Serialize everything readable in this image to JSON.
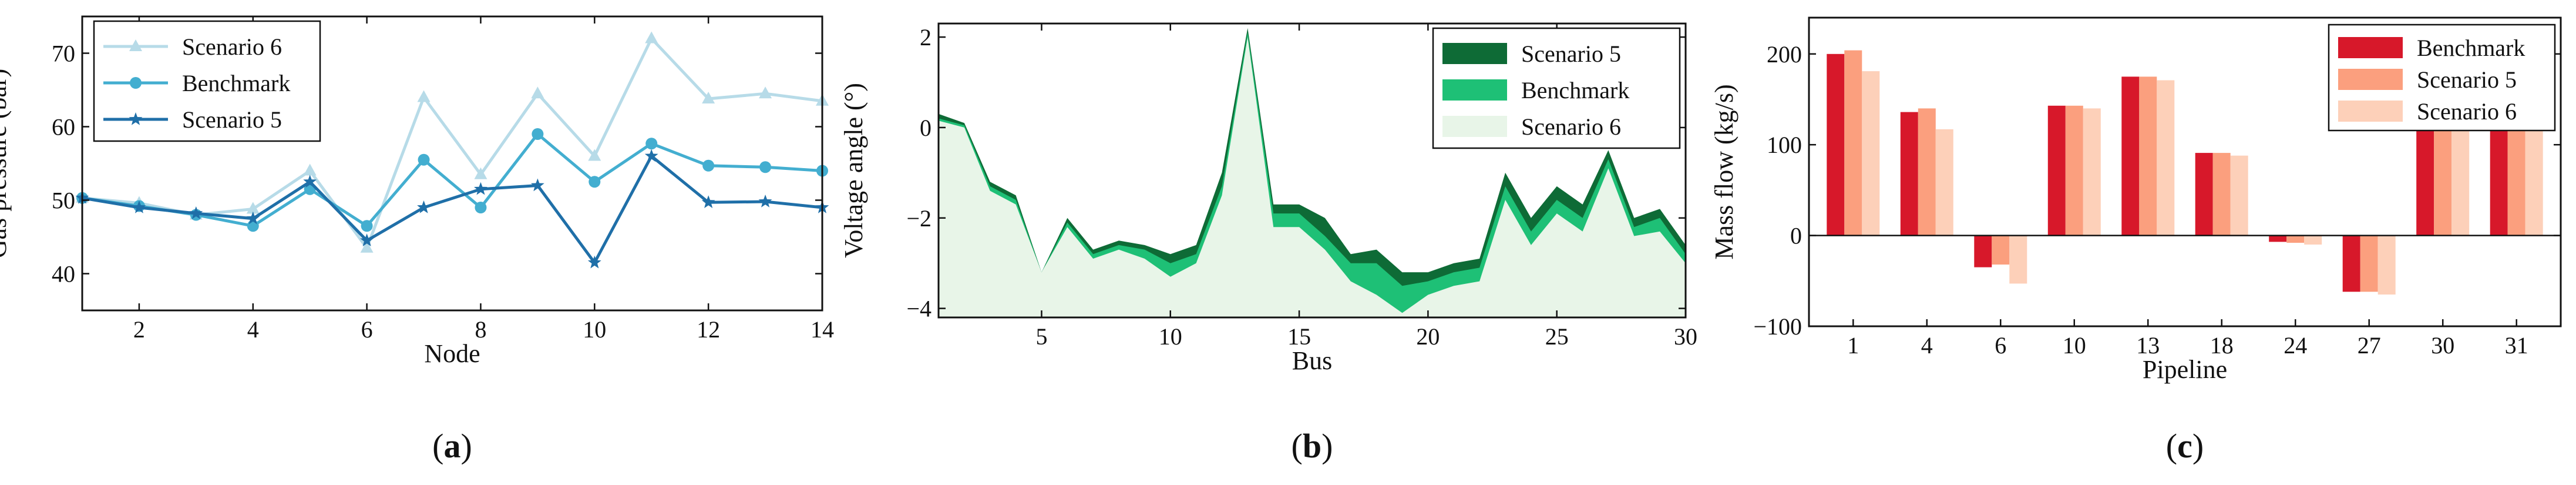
{
  "chart_data": [
    {
      "panel_label": "(a)",
      "panel_label_letter": "a",
      "type": "line",
      "xlabel": "Node",
      "ylabel": "Gas pressure (bar)",
      "xlim": [
        1,
        14
      ],
      "ylim": [
        35,
        75
      ],
      "xticks": [
        "2",
        "4",
        "6",
        "8",
        "10",
        "12",
        "14"
      ],
      "xtick_values": [
        2,
        4,
        6,
        8,
        10,
        12,
        14
      ],
      "yticks": [
        "40",
        "50",
        "60",
        "70"
      ],
      "ytick_values": [
        40,
        50,
        60,
        70
      ],
      "legend_position": "top-left",
      "x": [
        1,
        2,
        3,
        4,
        5,
        6,
        7,
        8,
        9,
        10,
        11,
        12,
        13,
        14
      ],
      "series": [
        {
          "name": "Scenario 6",
          "color": "#b7dbe8",
          "marker": "triangle",
          "values": [
            50.3,
            49.6,
            48.0,
            48.8,
            54.0,
            43.5,
            64.0,
            53.5,
            64.5,
            56.0,
            72.0,
            63.8,
            64.5,
            63.5
          ]
        },
        {
          "name": "Benchmark",
          "color": "#43aed0",
          "marker": "circle",
          "values": [
            50.3,
            49.2,
            48.0,
            46.5,
            51.5,
            46.5,
            55.5,
            49.0,
            59.0,
            52.5,
            57.7,
            54.7,
            54.5,
            54.0
          ]
        },
        {
          "name": "Scenario 5",
          "color": "#1f6fa8",
          "marker": "star",
          "values": [
            50.3,
            49.0,
            48.2,
            47.5,
            52.5,
            44.5,
            49.0,
            51.5,
            52.0,
            41.5,
            56.0,
            49.7,
            49.8,
            49.0
          ]
        }
      ]
    },
    {
      "panel_label": "(b)",
      "panel_label_letter": "b",
      "type": "area",
      "xlabel": "Bus",
      "ylabel": "Voltage angle (°)",
      "xlim": [
        1,
        30
      ],
      "ylim": [
        -4.2,
        2.3
      ],
      "xticks": [
        "5",
        "10",
        "15",
        "20",
        "25",
        "30"
      ],
      "xtick_values": [
        5,
        10,
        15,
        20,
        25,
        30
      ],
      "yticks": [
        "−4",
        "−2",
        "0",
        "2"
      ],
      "ytick_values": [
        -4,
        -2,
        0,
        2
      ],
      "legend_position": "top-right",
      "x": [
        1,
        2,
        3,
        4,
        5,
        6,
        7,
        8,
        9,
        10,
        11,
        12,
        13,
        14,
        15,
        16,
        17,
        18,
        19,
        20,
        21,
        22,
        23,
        24,
        25,
        26,
        27,
        28,
        29,
        30
      ],
      "series": [
        {
          "name": "Scenario 5",
          "color": "#0e6b36",
          "values": [
            0.3,
            0.1,
            -1.2,
            -1.5,
            -3.2,
            -2.0,
            -2.7,
            -2.5,
            -2.6,
            -2.8,
            -2.6,
            -1.0,
            2.2,
            -1.7,
            -1.7,
            -2.0,
            -2.8,
            -2.7,
            -3.2,
            -3.2,
            -3.0,
            -2.9,
            -1.0,
            -2.0,
            -1.3,
            -1.7,
            -0.5,
            -2.0,
            -1.8,
            -2.6
          ]
        },
        {
          "name": "Benchmark",
          "color": "#1ec076",
          "values": [
            0.2,
            0.05,
            -1.3,
            -1.6,
            -3.2,
            -2.1,
            -2.8,
            -2.6,
            -2.7,
            -3.0,
            -2.8,
            -1.3,
            2.1,
            -1.9,
            -1.9,
            -2.4,
            -3.0,
            -3.0,
            -3.5,
            -3.4,
            -3.2,
            -3.1,
            -1.3,
            -2.3,
            -1.6,
            -2.0,
            -0.7,
            -2.2,
            -2.0,
            -2.8
          ]
        },
        {
          "name": "Scenario 6",
          "color": "#e8f5e8",
          "values": [
            0.15,
            0.0,
            -1.4,
            -1.7,
            -3.2,
            -2.2,
            -2.9,
            -2.7,
            -2.9,
            -3.3,
            -3.0,
            -1.5,
            2.0,
            -2.2,
            -2.2,
            -2.7,
            -3.4,
            -3.7,
            -4.1,
            -3.7,
            -3.5,
            -3.4,
            -1.6,
            -2.6,
            -1.9,
            -2.3,
            -0.9,
            -2.4,
            -2.3,
            -3.0
          ]
        }
      ]
    },
    {
      "panel_label": "(c)",
      "panel_label_letter": "c",
      "type": "bar",
      "xlabel": "Pipeline",
      "ylabel": "Mass flow (kg/s)",
      "ylim": [
        -100,
        240
      ],
      "yticks": [
        "−100",
        "0",
        "100",
        "200"
      ],
      "ytick_values": [
        -100,
        0,
        100,
        200
      ],
      "legend_position": "top-right",
      "categories": [
        "1",
        "4",
        "6",
        "10",
        "13",
        "18",
        "24",
        "27",
        "30",
        "31"
      ],
      "series": [
        {
          "name": "Benchmark",
          "color": "#d7182a",
          "values": [
            200,
            136,
            -35,
            143,
            175,
            91,
            -7,
            -62,
            117,
            146
          ]
        },
        {
          "name": "Scenario 5",
          "color": "#fb9f7e",
          "values": [
            204,
            140,
            -32,
            143,
            175,
            91,
            -8,
            -62,
            117,
            143
          ]
        },
        {
          "name": "Scenario 6",
          "color": "#fdd0b9",
          "values": [
            181,
            117,
            -53,
            140,
            171,
            88,
            -10,
            -65,
            120,
            162
          ]
        }
      ]
    }
  ]
}
